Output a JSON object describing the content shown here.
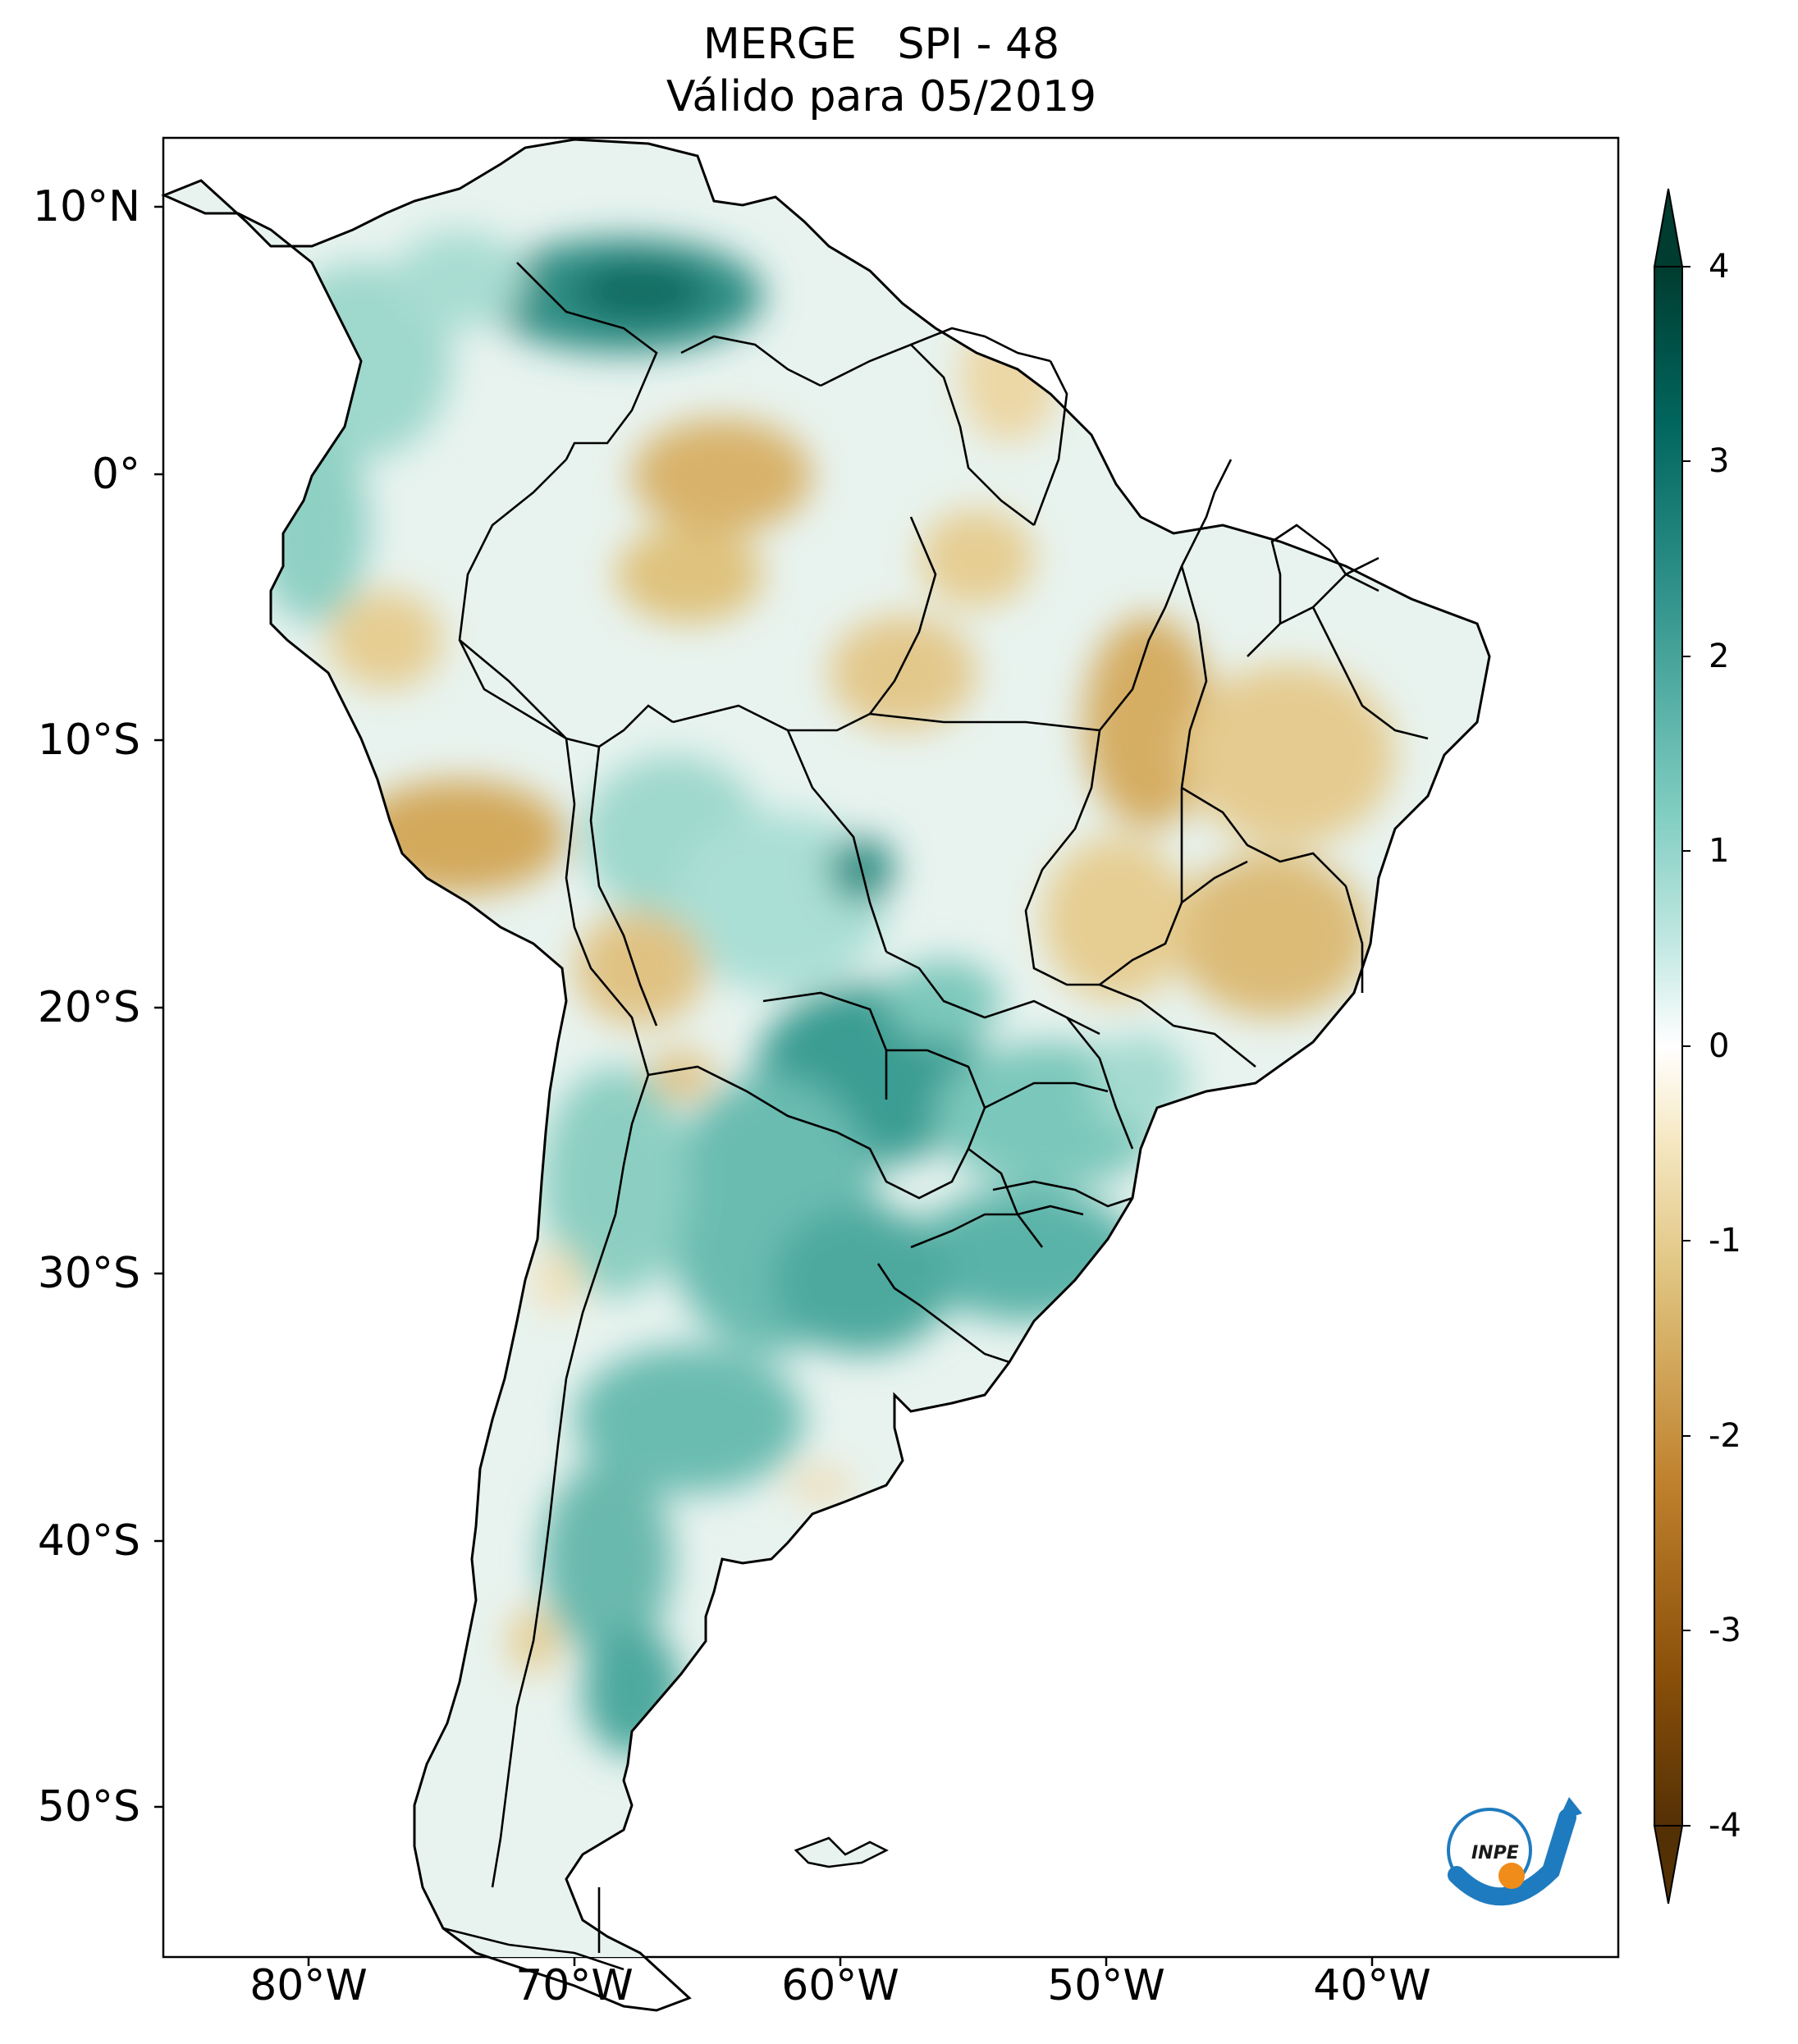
{
  "title": {
    "line1": "MERGE   SPI - 48",
    "line2": "Válido para 05/2019"
  },
  "axes": {
    "lat_ticks": [
      "10°N",
      "0°",
      "10°S",
      "20°S",
      "30°S",
      "40°S",
      "50°S"
    ],
    "lon_ticks": [
      "80°W",
      "70°W",
      "60°W",
      "50°W",
      "40°W"
    ]
  },
  "colorbar": {
    "ticks": [
      "4",
      "3",
      "2",
      "1",
      "0",
      "-1",
      "-2",
      "-3",
      "-4"
    ],
    "range": [
      -4,
      4
    ],
    "extend": "both",
    "colors": {
      "dry_extreme": "#543005",
      "dry_strong": "#8c510a",
      "dry_moderate": "#bf812d",
      "dry_mild": "#dfc27d",
      "dry_weak": "#f6e8c3",
      "neutral": "#ffffff",
      "wet_weak": "#c7eae5",
      "wet_mild": "#80cdc1",
      "wet_moderate": "#35978f",
      "wet_strong": "#01665e",
      "wet_extreme": "#003c30"
    }
  },
  "logo": {
    "text": "INPE"
  }
}
